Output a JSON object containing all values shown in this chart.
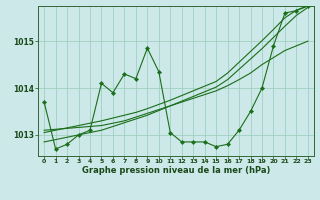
{
  "title": "Graphe pression niveau de la mer (hPa)",
  "bg_color": "#cce8e8",
  "grid_color": "#99ccbb",
  "line_color": "#1a6e1a",
  "marker_color": "#1a6e1a",
  "xlim": [
    -0.5,
    23.5
  ],
  "ylim": [
    1012.55,
    1015.75
  ],
  "yticks": [
    1013,
    1014,
    1015
  ],
  "xticks": [
    0,
    1,
    2,
    3,
    4,
    5,
    6,
    7,
    8,
    9,
    10,
    11,
    12,
    13,
    14,
    15,
    16,
    17,
    18,
    19,
    20,
    21,
    22,
    23
  ],
  "series0": [
    1013.7,
    1012.7,
    1012.8,
    1013.0,
    1013.1,
    1014.1,
    1013.9,
    1014.3,
    1014.2,
    1014.85,
    1014.35,
    1013.05,
    1012.85,
    1012.85,
    1012.85,
    1012.75,
    1012.8,
    1013.1,
    1013.5,
    1014.0,
    1014.9,
    1015.6,
    1015.65,
    1015.75
  ],
  "series1": [
    1013.1,
    1013.12,
    1013.14,
    1013.16,
    1013.18,
    1013.2,
    1013.25,
    1013.3,
    1013.38,
    1013.46,
    1013.54,
    1013.62,
    1013.7,
    1013.78,
    1013.86,
    1013.94,
    1014.05,
    1014.18,
    1014.32,
    1014.5,
    1014.65,
    1014.8,
    1014.9,
    1015.0
  ],
  "series2": [
    1012.85,
    1012.9,
    1012.95,
    1013.0,
    1013.05,
    1013.1,
    1013.18,
    1013.26,
    1013.34,
    1013.42,
    1013.52,
    1013.62,
    1013.72,
    1013.82,
    1013.92,
    1014.02,
    1014.18,
    1014.4,
    1014.62,
    1014.84,
    1015.08,
    1015.32,
    1015.55,
    1015.72
  ],
  "series3": [
    1013.05,
    1013.1,
    1013.15,
    1013.2,
    1013.25,
    1013.3,
    1013.36,
    1013.42,
    1013.48,
    1013.56,
    1013.65,
    1013.74,
    1013.84,
    1013.94,
    1014.04,
    1014.14,
    1014.32,
    1014.55,
    1014.78,
    1015.01,
    1015.25,
    1015.5,
    1015.66,
    1015.76
  ]
}
